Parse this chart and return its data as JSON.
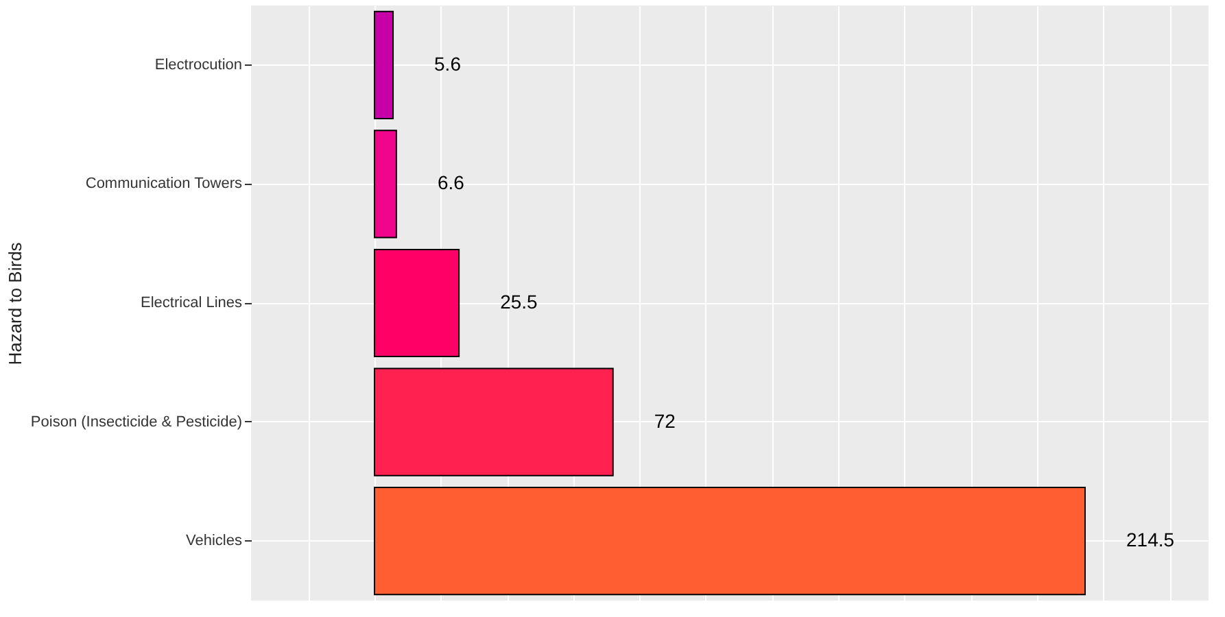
{
  "chart_data": {
    "type": "bar",
    "orientation": "horizontal",
    "ylabel": "Hazard to Birds",
    "categories": [
      "Electrocution",
      "Communication Towers",
      "Electrical Lines",
      "Poison (Insecticide & Pesticide)",
      "Vehicles"
    ],
    "values": [
      5.6,
      6.6,
      25.5,
      72,
      214.5
    ],
    "colors": [
      "#c800a8",
      "#f0058c",
      "#ff0066",
      "#ff214f",
      "#ff5e33"
    ],
    "data_labels": true,
    "grid": true,
    "tick_labels": "y"
  }
}
